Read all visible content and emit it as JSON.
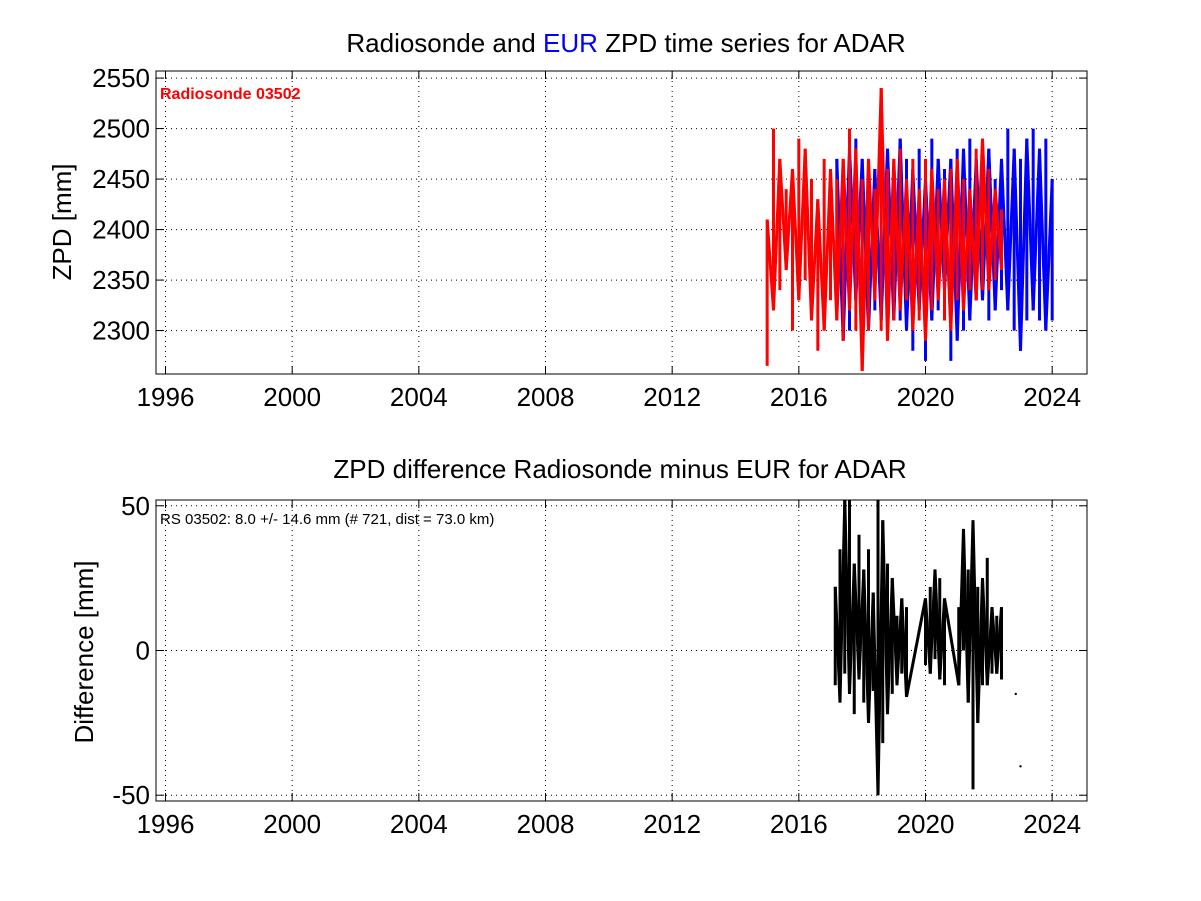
{
  "figure": {
    "background": "#ffffff"
  },
  "chart_data": [
    {
      "type": "line",
      "title_parts": [
        {
          "text": "Radiosonde and ",
          "color": "#000000"
        },
        {
          "text": "EUR",
          "color": "#0000ff"
        },
        {
          "text": " ZPD time series for ADAR",
          "color": "#000000"
        }
      ],
      "ylabel": "ZPD [mm]",
      "xlabel": "",
      "xlim": [
        1995.7,
        2025.1
      ],
      "ylim": [
        2257,
        2557
      ],
      "xticks": [
        1996,
        2000,
        2004,
        2008,
        2012,
        2016,
        2020,
        2024
      ],
      "yticks": [
        2300,
        2350,
        2400,
        2450,
        2500,
        2550
      ],
      "grid": true,
      "annotation": {
        "text": "Radiosonde 03502",
        "color": "#ff0000",
        "position": "top-left"
      },
      "series": [
        {
          "color": "#0000ff",
          "x": [
            2017.2,
            2017.4,
            2017.6,
            2017.8,
            2018.0,
            2018.2,
            2018.4,
            2018.6,
            2018.8,
            2019.0,
            2019.2,
            2019.4,
            2019.6,
            2019.8,
            2020.0,
            2020.2,
            2020.4,
            2020.6,
            2020.8,
            2021.0,
            2021.2,
            2021.4,
            2021.6,
            2021.8,
            2022.0,
            2022.2,
            2022.4,
            2022.6,
            2022.8,
            2023.0,
            2023.2,
            2023.4,
            2023.6,
            2023.8,
            2024.0
          ],
          "low": [
            2320,
            2290,
            2300,
            2330,
            2290,
            2300,
            2320,
            2310,
            2290,
            2310,
            2310,
            2300,
            2280,
            2320,
            2270,
            2310,
            2320,
            2340,
            2270,
            2290,
            2300,
            2310,
            2330,
            2330,
            2310,
            2320,
            2340,
            2320,
            2300,
            2280,
            2310,
            2320,
            2310,
            2300,
            2310
          ],
          "high": [
            2470,
            2450,
            2480,
            2490,
            2470,
            2450,
            2460,
            2470,
            2480,
            2450,
            2490,
            2470,
            2460,
            2480,
            2450,
            2490,
            2470,
            2460,
            2470,
            2480,
            2480,
            2490,
            2470,
            2450,
            2480,
            2450,
            2470,
            2500,
            2480,
            2470,
            2490,
            2500,
            2480,
            2490,
            2450
          ]
        },
        {
          "color": "#ff0000",
          "x": [
            2015.0,
            2015.2,
            2015.4,
            2015.6,
            2015.8,
            2016.0,
            2016.2,
            2016.4,
            2016.6,
            2016.8,
            2017.0,
            2017.2,
            2017.4,
            2017.6,
            2017.8,
            2018.0,
            2018.2,
            2018.4,
            2018.6,
            2018.8,
            2019.0,
            2019.2,
            2019.4,
            2019.6,
            2019.8,
            2020.0,
            2020.2,
            2020.4,
            2020.6,
            2020.8,
            2021.0,
            2021.2,
            2021.4,
            2021.6,
            2021.8,
            2022.0,
            2022.2,
            2022.4
          ],
          "low": [
            2265,
            2320,
            2340,
            2360,
            2300,
            2330,
            2350,
            2310,
            2280,
            2300,
            2330,
            2310,
            2290,
            2320,
            2300,
            2260,
            2300,
            2330,
            2300,
            2290,
            2310,
            2320,
            2330,
            2300,
            2310,
            2290,
            2320,
            2330,
            2310,
            2300,
            2330,
            2320,
            2340,
            2330,
            2340,
            2340,
            2350,
            2360
          ],
          "high": [
            2410,
            2500,
            2470,
            2440,
            2460,
            2490,
            2480,
            2450,
            2430,
            2470,
            2460,
            2450,
            2470,
            2500,
            2480,
            2450,
            2470,
            2440,
            2540,
            2460,
            2470,
            2480,
            2450,
            2470,
            2440,
            2470,
            2460,
            2440,
            2450,
            2460,
            2470,
            2450,
            2440,
            2480,
            2490,
            2460,
            2440,
            2420
          ]
        }
      ]
    },
    {
      "type": "line",
      "title": "ZPD difference Radiosonde minus EUR for ADAR",
      "ylabel": "Difference [mm]",
      "xlabel": "",
      "xlim": [
        1995.7,
        2025.1
      ],
      "ylim": [
        -52,
        52
      ],
      "xticks": [
        1996,
        2000,
        2004,
        2008,
        2012,
        2016,
        2020,
        2024
      ],
      "yticks": [
        -50,
        0,
        50
      ],
      "grid": true,
      "annotation": {
        "text": "RS 03502: 8.0 +/- 14.6 mm (# 721, dist =  73.0 km)",
        "color": "#000000",
        "position": "top-left"
      },
      "series": [
        {
          "color": "#000000",
          "x": [
            2017.15,
            2017.3,
            2017.45,
            2017.6,
            2017.75,
            2017.9,
            2018.05,
            2018.2,
            2018.35,
            2018.5,
            2018.65,
            2018.8,
            2018.95,
            2019.1,
            2019.25,
            2019.4,
            2020.0,
            2020.15,
            2020.3,
            2020.45,
            2020.6,
            2021.05,
            2021.2,
            2021.35,
            2021.5,
            2021.65,
            2021.8,
            2021.95,
            2022.1,
            2022.25,
            2022.4
          ],
          "low": [
            -12,
            -18,
            -8,
            -15,
            -22,
            -10,
            -18,
            -25,
            -14,
            -50,
            -32,
            -22,
            -15,
            -12,
            -8,
            -16,
            -5,
            -8,
            -3,
            -10,
            -12,
            -12,
            0,
            -18,
            -48,
            -25,
            -12,
            -12,
            -8,
            -8,
            -10
          ],
          "high": [
            22,
            35,
            52,
            52,
            30,
            40,
            28,
            35,
            20,
            52,
            45,
            30,
            25,
            12,
            18,
            15,
            18,
            22,
            28,
            25,
            18,
            15,
            42,
            28,
            45,
            22,
            25,
            32,
            15,
            12,
            15
          ]
        }
      ],
      "points": [
        {
          "x": 2023.0,
          "y": -40
        },
        {
          "x": 2022.85,
          "y": -15
        }
      ]
    }
  ]
}
